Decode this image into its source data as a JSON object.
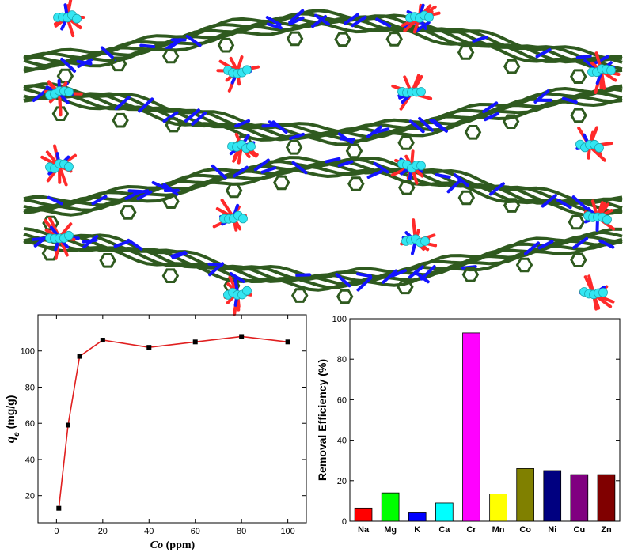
{
  "structure_image": {
    "layers": 4,
    "colors": {
      "carbon": "#2f5a1f",
      "oxygen": "#ff2a2a",
      "nitrogen": "#1414ff",
      "metal": "#33e6f2"
    }
  },
  "chart_data": [
    {
      "type": "line",
      "xlabel": "Co (ppm)",
      "ylabel": "q_e (mg/g)",
      "xlabel_parts": {
        "symbol": "Co",
        "unit": " (ppm)"
      },
      "ylabel_parts": {
        "symbol": "q",
        "subscript": "e",
        "unit": " (mg/g)"
      },
      "xlim": [
        -8,
        108
      ],
      "ylim": [
        5,
        120
      ],
      "xticks": [
        0,
        20,
        40,
        60,
        80,
        100
      ],
      "yticks": [
        20,
        40,
        60,
        80,
        100
      ],
      "x": [
        1,
        5,
        10,
        20,
        40,
        60,
        80,
        100
      ],
      "y": [
        13,
        59,
        97,
        106,
        102,
        105,
        108,
        105
      ],
      "line_color": "#e02020",
      "marker_color": "#000000",
      "grid": false
    },
    {
      "type": "bar",
      "ylabel": "Removal Efficiency (%)",
      "ylim": [
        0,
        100
      ],
      "yticks": [
        0,
        20,
        40,
        60,
        80,
        100
      ],
      "categories": [
        "Na",
        "Mg",
        "K",
        "Ca",
        "Cr",
        "Mn",
        "Co",
        "Ni",
        "Cu",
        "Zn"
      ],
      "values": [
        6.5,
        14,
        4.5,
        9,
        93,
        13.5,
        26,
        25,
        23,
        23
      ],
      "colors": [
        "#ff0000",
        "#00ff00",
        "#0000ff",
        "#00ffff",
        "#ff00ff",
        "#ffff00",
        "#808000",
        "#000080",
        "#800080",
        "#800000"
      ],
      "grid": false
    }
  ]
}
